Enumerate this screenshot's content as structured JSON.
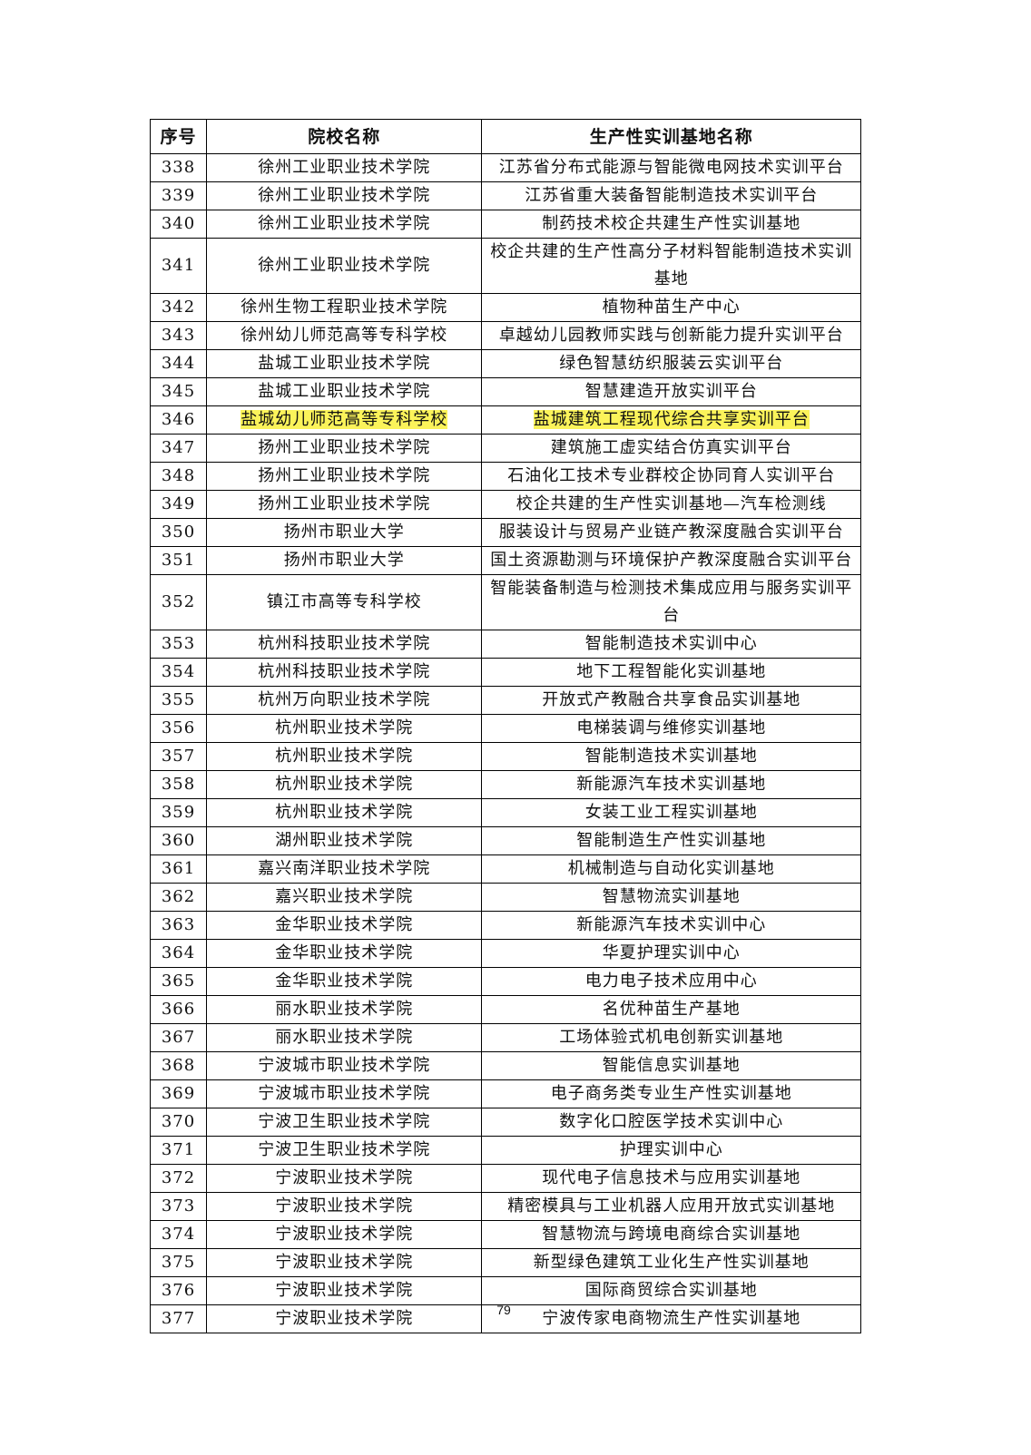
{
  "table": {
    "headers": [
      "序号",
      "院校名称",
      "生产性实训基地名称"
    ],
    "rows": [
      {
        "no": "338",
        "school": "徐州工业职业技术学院",
        "base": "江苏省分布式能源与智能微电网技术实训平台"
      },
      {
        "no": "339",
        "school": "徐州工业职业技术学院",
        "base": "江苏省重大装备智能制造技术实训平台"
      },
      {
        "no": "340",
        "school": "徐州工业职业技术学院",
        "base": "制药技术校企共建生产性实训基地"
      },
      {
        "no": "341",
        "school": "徐州工业职业技术学院",
        "base": "校企共建的生产性高分子材料智能制造技术实训基地",
        "double": true
      },
      {
        "no": "342",
        "school": "徐州生物工程职业技术学院",
        "base": "植物种苗生产中心"
      },
      {
        "no": "343",
        "school": "徐州幼儿师范高等专科学校",
        "base": "卓越幼儿园教师实践与创新能力提升实训平台"
      },
      {
        "no": "344",
        "school": "盐城工业职业技术学院",
        "base": "绿色智慧纺织服装云实训平台"
      },
      {
        "no": "345",
        "school": "盐城工业职业技术学院",
        "base": "智慧建造开放实训平台"
      },
      {
        "no": "346",
        "school": "盐城幼儿师范高等专科学校",
        "base": "盐城建筑工程现代综合共享实训平台",
        "highlight": true
      },
      {
        "no": "347",
        "school": "扬州工业职业技术学院",
        "base": "建筑施工虚实结合仿真实训平台"
      },
      {
        "no": "348",
        "school": "扬州工业职业技术学院",
        "base": "石油化工技术专业群校企协同育人实训平台"
      },
      {
        "no": "349",
        "school": "扬州工业职业技术学院",
        "base": "校企共建的生产性实训基地—汽车检测线"
      },
      {
        "no": "350",
        "school": "扬州市职业大学",
        "base": "服装设计与贸易产业链产教深度融合实训平台"
      },
      {
        "no": "351",
        "school": "扬州市职业大学",
        "base": "国土资源勘测与环境保护产教深度融合实训平台"
      },
      {
        "no": "352",
        "school": "镇江市高等专科学校",
        "base": "智能装备制造与检测技术集成应用与服务实训平台",
        "double": true
      },
      {
        "no": "353",
        "school": "杭州科技职业技术学院",
        "base": "智能制造技术实训中心"
      },
      {
        "no": "354",
        "school": "杭州科技职业技术学院",
        "base": "地下工程智能化实训基地"
      },
      {
        "no": "355",
        "school": "杭州万向职业技术学院",
        "base": "开放式产教融合共享食品实训基地"
      },
      {
        "no": "356",
        "school": "杭州职业技术学院",
        "base": "电梯装调与维修实训基地"
      },
      {
        "no": "357",
        "school": "杭州职业技术学院",
        "base": "智能制造技术实训基地"
      },
      {
        "no": "358",
        "school": "杭州职业技术学院",
        "base": "新能源汽车技术实训基地"
      },
      {
        "no": "359",
        "school": "杭州职业技术学院",
        "base": "女装工业工程实训基地"
      },
      {
        "no": "360",
        "school": "湖州职业技术学院",
        "base": "智能制造生产性实训基地"
      },
      {
        "no": "361",
        "school": "嘉兴南洋职业技术学院",
        "base": "机械制造与自动化实训基地"
      },
      {
        "no": "362",
        "school": "嘉兴职业技术学院",
        "base": "智慧物流实训基地"
      },
      {
        "no": "363",
        "school": "金华职业技术学院",
        "base": "新能源汽车技术实训中心"
      },
      {
        "no": "364",
        "school": "金华职业技术学院",
        "base": "华夏护理实训中心"
      },
      {
        "no": "365",
        "school": "金华职业技术学院",
        "base": "电力电子技术应用中心"
      },
      {
        "no": "366",
        "school": "丽水职业技术学院",
        "base": "名优种苗生产基地"
      },
      {
        "no": "367",
        "school": "丽水职业技术学院",
        "base": "工场体验式机电创新实训基地"
      },
      {
        "no": "368",
        "school": "宁波城市职业技术学院",
        "base": "智能信息实训基地"
      },
      {
        "no": "369",
        "school": "宁波城市职业技术学院",
        "base": "电子商务类专业生产性实训基地"
      },
      {
        "no": "370",
        "school": "宁波卫生职业技术学院",
        "base": "数字化口腔医学技术实训中心"
      },
      {
        "no": "371",
        "school": "宁波卫生职业技术学院",
        "base": "护理实训中心"
      },
      {
        "no": "372",
        "school": "宁波职业技术学院",
        "base": "现代电子信息技术与应用实训基地"
      },
      {
        "no": "373",
        "school": "宁波职业技术学院",
        "base": "精密模具与工业机器人应用开放式实训基地"
      },
      {
        "no": "374",
        "school": "宁波职业技术学院",
        "base": "智慧物流与跨境电商综合实训基地"
      },
      {
        "no": "375",
        "school": "宁波职业技术学院",
        "base": "新型绿色建筑工业化生产性实训基地"
      },
      {
        "no": "376",
        "school": "宁波职业技术学院",
        "base": "国际商贸综合实训基地"
      },
      {
        "no": "377",
        "school": "宁波职业技术学院",
        "base": "宁波传家电商物流生产性实训基地"
      }
    ]
  },
  "highlight_color": "#fbf35a",
  "page_number": "79"
}
